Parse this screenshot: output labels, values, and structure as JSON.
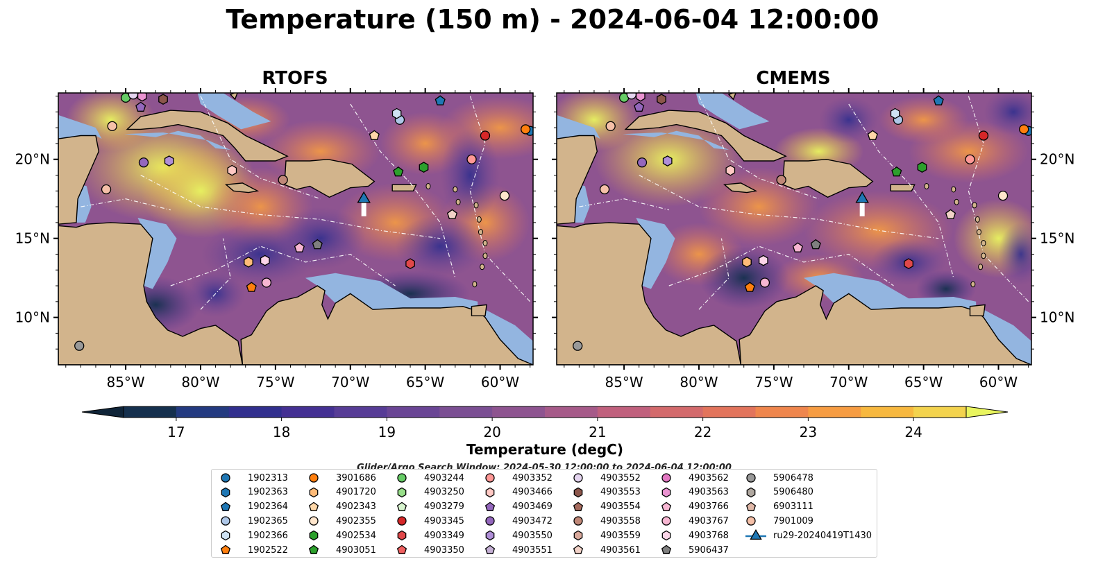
{
  "title": "Temperature (150 m) - 2024-06-04 12:00:00",
  "panels": [
    {
      "title": "RTOFS"
    },
    {
      "title": "CMEMS"
    }
  ],
  "map": {
    "lon_range": [
      -89.5,
      -57.8
    ],
    "lat_range": [
      7.0,
      24.2
    ],
    "lon_ticks": [
      -85,
      -80,
      -75,
      -70,
      -65,
      -60
    ],
    "lon_tick_labels": [
      "85°W",
      "80°W",
      "75°W",
      "70°W",
      "65°W",
      "60°W"
    ],
    "lat_ticks": [
      10,
      15,
      20
    ],
    "lat_tick_labels": [
      "10°N",
      "15°N",
      "20°N"
    ],
    "land_color": "#d2b48c",
    "shelf_color": "#93b5e0",
    "deep_color": "#0d2333"
  },
  "colorbar": {
    "label": "Temperature (degC)",
    "ticks": [
      17,
      18,
      19,
      20,
      21,
      22,
      23,
      24
    ],
    "tick_labels": [
      "17",
      "18",
      "19",
      "20",
      "21",
      "22",
      "23",
      "24"
    ],
    "levels": [
      16.5,
      17.0,
      17.5,
      18.0,
      18.5,
      19.0,
      19.5,
      20.0,
      20.5,
      21.0,
      21.5,
      22.0,
      22.5,
      23.0,
      23.5,
      24.0,
      24.5
    ],
    "colors": [
      "#0f2438",
      "#15304e",
      "#233a80",
      "#312f8e",
      "#443093",
      "#573c96",
      "#6a4595",
      "#7b4f93",
      "#8e5490",
      "#a65a89",
      "#c0607d",
      "#d36a6c",
      "#e2745c",
      "#ef864d",
      "#f69c42",
      "#f7b83f",
      "#f3d34e",
      "#e9f55f"
    ],
    "extend": "both"
  },
  "search_window_text": "Glider/Argo Search Window: 2024-05-30 12:00:00 to 2024-06-04 12:00:00",
  "legend": [
    {
      "label": "1902313",
      "shape": "circle",
      "color": "#1f77b4"
    },
    {
      "label": "1902363",
      "shape": "hexagon",
      "color": "#1f77b4"
    },
    {
      "label": "1902364",
      "shape": "pentagon",
      "color": "#1f77b4"
    },
    {
      "label": "1902365",
      "shape": "circle",
      "color": "#aec7e8"
    },
    {
      "label": "1902366",
      "shape": "hexagon",
      "color": "#cfe2f3"
    },
    {
      "label": "1902522",
      "shape": "pentagon",
      "color": "#ff7f0e"
    },
    {
      "label": "3901686",
      "shape": "circle",
      "color": "#ff7f0e"
    },
    {
      "label": "4901720",
      "shape": "hexagon",
      "color": "#ffbb78"
    },
    {
      "label": "4902343",
      "shape": "pentagon",
      "color": "#ffd7a8"
    },
    {
      "label": "4902355",
      "shape": "circle",
      "color": "#ffe6cc"
    },
    {
      "label": "4902534",
      "shape": "hexagon",
      "color": "#2ca02c"
    },
    {
      "label": "4903051",
      "shape": "pentagon",
      "color": "#2ca02c"
    },
    {
      "label": "4903244",
      "shape": "circle",
      "color": "#66cc66"
    },
    {
      "label": "4903250",
      "shape": "hexagon",
      "color": "#98df8a"
    },
    {
      "label": "4903279",
      "shape": "pentagon",
      "color": "#d8f5cf"
    },
    {
      "label": "4903345",
      "shape": "circle",
      "color": "#d62728"
    },
    {
      "label": "4903349",
      "shape": "hexagon",
      "color": "#e0484a"
    },
    {
      "label": "4903350",
      "shape": "pentagon",
      "color": "#f06060"
    },
    {
      "label": "4903352",
      "shape": "circle",
      "color": "#ff9896"
    },
    {
      "label": "4903466",
      "shape": "hexagon",
      "color": "#ffc9c4"
    },
    {
      "label": "4903469",
      "shape": "pentagon",
      "color": "#9467bd"
    },
    {
      "label": "4903472",
      "shape": "circle",
      "color": "#9467bd"
    },
    {
      "label": "4903550",
      "shape": "hexagon",
      "color": "#b08fd8"
    },
    {
      "label": "4903551",
      "shape": "pentagon",
      "color": "#c5b0d5"
    },
    {
      "label": "4903552",
      "shape": "circle",
      "color": "#e5d5f0"
    },
    {
      "label": "4903553",
      "shape": "hexagon",
      "color": "#8c564b"
    },
    {
      "label": "4903554",
      "shape": "pentagon",
      "color": "#a66b5e"
    },
    {
      "label": "4903558",
      "shape": "circle",
      "color": "#c08878"
    },
    {
      "label": "4903559",
      "shape": "hexagon",
      "color": "#d9a99c"
    },
    {
      "label": "4903561",
      "shape": "pentagon",
      "color": "#f2d2c8"
    },
    {
      "label": "4903562",
      "shape": "circle",
      "color": "#e377c2"
    },
    {
      "label": "4903563",
      "shape": "hexagon",
      "color": "#ea93d1"
    },
    {
      "label": "4903766",
      "shape": "pentagon",
      "color": "#f7b6d2"
    },
    {
      "label": "4903767",
      "shape": "circle",
      "color": "#f7b6d2"
    },
    {
      "label": "4903768",
      "shape": "hexagon",
      "color": "#fbd5e8"
    },
    {
      "label": "5906437",
      "shape": "pentagon",
      "color": "#7f7f7f"
    },
    {
      "label": "5906478",
      "shape": "circle",
      "color": "#999999"
    },
    {
      "label": "5906480",
      "shape": "hexagon",
      "color": "#b0a8a0"
    },
    {
      "label": "6903111",
      "shape": "pentagon",
      "color": "#e0b8a8"
    },
    {
      "label": "7901009",
      "shape": "circle",
      "color": "#f5c0a8"
    },
    {
      "label": "ru29-20240419T1430",
      "shape": "triangle-line",
      "color": "#1f77b4"
    }
  ],
  "floats": [
    {
      "id": "1902313",
      "lon": -58.0,
      "lat": 21.8
    },
    {
      "id": "1902364",
      "lon": -64.0,
      "lat": 23.7
    },
    {
      "id": "1902365",
      "lon": -66.7,
      "lat": 22.5
    },
    {
      "id": "1902366",
      "lon": -66.9,
      "lat": 22.9
    },
    {
      "id": "1902522",
      "lon": -76.6,
      "lat": 11.9
    },
    {
      "id": "3901686",
      "lon": -58.3,
      "lat": 21.9
    },
    {
      "id": "4901720",
      "lon": -76.8,
      "lat": 13.5
    },
    {
      "id": "4902343",
      "lon": -68.4,
      "lat": 21.5
    },
    {
      "id": "4902355",
      "lon": -59.7,
      "lat": 17.7
    },
    {
      "id": "4902534",
      "lon": -65.1,
      "lat": 19.5
    },
    {
      "id": "4903051",
      "lon": -66.8,
      "lat": 19.2
    },
    {
      "id": "4903244",
      "lon": -85.0,
      "lat": 23.9
    },
    {
      "id": "4903345",
      "lon": -61.0,
      "lat": 21.5
    },
    {
      "id": "4903349",
      "lon": -66.0,
      "lat": 13.4
    },
    {
      "id": "4903466",
      "lon": -77.9,
      "lat": 19.3
    },
    {
      "id": "4903469",
      "lon": -84.0,
      "lat": 23.3
    },
    {
      "id": "4903472",
      "lon": -83.8,
      "lat": 19.8
    },
    {
      "id": "4903550",
      "lon": -82.1,
      "lat": 19.9
    },
    {
      "id": "4903552",
      "lon": -84.5,
      "lat": 24.1
    },
    {
      "id": "4903553",
      "lon": -82.5,
      "lat": 23.8
    },
    {
      "id": "4903558",
      "lon": -74.5,
      "lat": 18.7
    },
    {
      "id": "4903561",
      "lon": -63.2,
      "lat": 16.5
    },
    {
      "id": "4903563",
      "lon": -83.9,
      "lat": 24.0
    },
    {
      "id": "4903766",
      "lon": -73.4,
      "lat": 14.4
    },
    {
      "id": "4903767",
      "lon": -75.6,
      "lat": 12.2
    },
    {
      "id": "4903768",
      "lon": -75.7,
      "lat": 13.6
    },
    {
      "id": "5906437",
      "lon": -72.2,
      "lat": 14.6
    },
    {
      "id": "5906478",
      "lon": -88.1,
      "lat": 8.2
    },
    {
      "id": "7901009",
      "lon": -86.3,
      "lat": 18.1
    },
    {
      "id": "7901009b",
      "lon": -85.9,
      "lat": 22.1
    },
    {
      "id": "4903352b",
      "lon": -61.9,
      "lat": 20.0
    }
  ],
  "glider": {
    "id": "ru29-20240419T1430",
    "lon": -69.1,
    "lat": 17.4,
    "track_end_lat": 16.4
  }
}
